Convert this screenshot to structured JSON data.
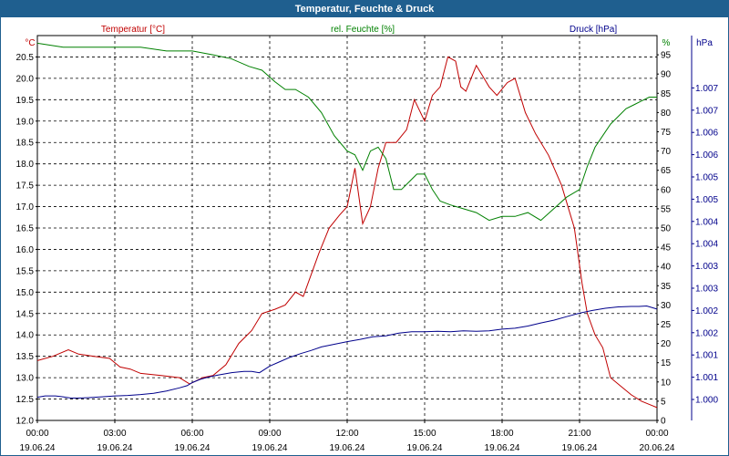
{
  "window": {
    "title": "Temperatur, Feuchte & Druck"
  },
  "colors": {
    "titlebar": "#1f5f8f",
    "temperature": "#c00000",
    "humidity": "#008000",
    "pressure": "#00008b"
  },
  "chart_data": {
    "type": "line",
    "title": "Temperatur, Feuchte & Druck",
    "grid": true,
    "x_ticks": [
      {
        "time": "00:00",
        "date": "19.06.24"
      },
      {
        "time": "03:00",
        "date": "19.06.24"
      },
      {
        "time": "06:00",
        "date": "19.06.24"
      },
      {
        "time": "09:00",
        "date": "19.06.24"
      },
      {
        "time": "12:00",
        "date": "19.06.24"
      },
      {
        "time": "15:00",
        "date": "19.06.24"
      },
      {
        "time": "18:00",
        "date": "19.06.24"
      },
      {
        "time": "21:00",
        "date": "19.06.24"
      },
      {
        "time": "00:00",
        "date": "20.06.24"
      }
    ],
    "x_hours_range": [
      0,
      24
    ],
    "axes": {
      "temperature": {
        "label": "Temperatur [°C]",
        "unit": "°C",
        "range": [
          12.0,
          21.0
        ],
        "ticks": [
          "12.0",
          "12.5",
          "13.0",
          "13.5",
          "14.0",
          "14.5",
          "15.0",
          "15.5",
          "16.0",
          "16.5",
          "17.0",
          "17.5",
          "18.0",
          "18.5",
          "19.0",
          "19.5",
          "20.0",
          "20.5"
        ]
      },
      "humidity": {
        "label": "rel. Feuchte [%]",
        "unit": "%",
        "range": [
          0,
          100
        ],
        "ticks": [
          "0",
          "5",
          "10",
          "15",
          "20",
          "25",
          "30",
          "35",
          "40",
          "45",
          "50",
          "55",
          "60",
          "65",
          "70",
          "75",
          "80",
          "85",
          "90",
          "95"
        ]
      },
      "pressure": {
        "label": "Druck [hPa]",
        "unit": "hPa",
        "ticks": [
          "1.000",
          "1.001",
          "1.001",
          "1.002",
          "1.002",
          "1.003",
          "1.003",
          "1.004",
          "1.004",
          "1.005",
          "1.005",
          "1.006",
          "1.006",
          "1.007",
          "1.007"
        ]
      }
    },
    "series": [
      {
        "name": "Temperatur [°C]",
        "axis": "temperature",
        "color": "#c00000",
        "x": [
          0,
          0.6,
          1.2,
          1.6,
          2.2,
          2.8,
          3.2,
          3.6,
          4.0,
          4.8,
          5.5,
          5.9,
          6.4,
          6.8,
          7.3,
          7.8,
          8.3,
          8.7,
          9.2,
          9.6,
          10.0,
          10.3,
          10.6,
          10.9,
          11.3,
          11.7,
          12.0,
          12.3,
          12.6,
          12.9,
          13.2,
          13.5,
          13.9,
          14.3,
          14.6,
          15.0,
          15.3,
          15.6,
          15.9,
          16.2,
          16.4,
          16.6,
          17.0,
          17.3,
          17.5,
          17.8,
          18.2,
          18.5,
          18.9,
          19.3,
          19.8,
          20.3,
          20.8,
          21.1,
          21.3,
          21.6,
          21.9,
          22.2,
          22.6,
          23.0,
          23.4,
          23.8,
          24.0
        ],
        "values": [
          13.4,
          13.5,
          13.65,
          13.55,
          13.5,
          13.45,
          13.25,
          13.2,
          13.1,
          13.05,
          13.0,
          12.85,
          13.0,
          13.05,
          13.3,
          13.8,
          14.1,
          14.5,
          14.6,
          14.7,
          15.0,
          14.9,
          15.4,
          15.9,
          16.5,
          16.8,
          17.0,
          17.9,
          16.6,
          17.0,
          17.9,
          18.5,
          18.5,
          18.8,
          19.5,
          19.0,
          19.6,
          19.8,
          20.5,
          20.4,
          19.8,
          19.7,
          20.3,
          20.0,
          19.8,
          19.6,
          19.9,
          20.0,
          19.2,
          18.7,
          18.2,
          17.5,
          16.5,
          15.2,
          14.5,
          14.0,
          13.7,
          13.0,
          12.8,
          12.6,
          12.45,
          12.35,
          12.3
        ]
      },
      {
        "name": "rel. Feuchte [%]",
        "axis": "humidity",
        "color": "#008000",
        "x": [
          0,
          1,
          2,
          3,
          4,
          5,
          6,
          6.8,
          7.5,
          8.2,
          8.7,
          9.2,
          9.6,
          10.0,
          10.5,
          11.0,
          11.5,
          12.0,
          12.3,
          12.6,
          12.9,
          13.2,
          13.5,
          13.8,
          14.1,
          14.4,
          14.7,
          15.0,
          15.3,
          15.6,
          16.0,
          16.5,
          17.0,
          17.5,
          18.0,
          18.5,
          19.0,
          19.5,
          20.0,
          20.5,
          21.0,
          21.3,
          21.6,
          21.9,
          22.2,
          22.5,
          22.8,
          23.1,
          23.4,
          23.7,
          24.0
        ],
        "values": [
          98,
          97,
          97,
          97,
          97,
          96,
          96,
          95,
          94,
          92,
          91,
          88,
          86,
          86,
          84,
          80,
          74,
          70,
          69,
          65,
          70,
          71,
          68,
          60,
          60,
          62,
          64,
          64,
          60,
          57,
          56,
          55,
          54,
          52,
          53,
          53,
          54,
          52,
          55,
          58,
          60,
          66,
          71,
          74,
          77,
          79,
          81,
          82,
          83,
          84,
          84
        ]
      },
      {
        "name": "Druck [hPa]",
        "axis": "pressure",
        "color": "#00008b",
        "x": [
          0,
          0.3,
          0.7,
          1.0,
          1.3,
          1.6,
          2.0,
          2.5,
          3.0,
          3.5,
          4.0,
          4.5,
          5.0,
          5.5,
          5.8,
          6.0,
          6.3,
          6.6,
          7.0,
          7.5,
          8.0,
          8.3,
          8.6,
          9.0,
          9.4,
          9.8,
          10.2,
          10.6,
          11.0,
          11.5,
          12.0,
          12.5,
          13.0,
          13.5,
          14.0,
          14.5,
          15.0,
          15.5,
          16.0,
          16.5,
          17.0,
          17.5,
          18.0,
          18.5,
          19.0,
          19.5,
          20.0,
          20.5,
          21.0,
          21.5,
          22.0,
          22.5,
          23.0,
          23.3,
          23.6,
          24.0
        ],
        "values": [
          1.0,
          1.6,
          1.6,
          1.2,
          0.6,
          0.6,
          0.8,
          1.2,
          1.6,
          1.8,
          2.2,
          2.8,
          3.8,
          5.2,
          6.2,
          7.6,
          9.0,
          10.0,
          11.0,
          12.0,
          12.6,
          12.6,
          12.0,
          15.0,
          17.0,
          19.0,
          20.6,
          22.0,
          23.6,
          24.8,
          26.0,
          27.0,
          28.2,
          28.6,
          29.8,
          30.4,
          30.4,
          30.6,
          30.4,
          30.8,
          30.6,
          30.8,
          31.6,
          32.0,
          33.0,
          34.4,
          35.6,
          37.2,
          38.8,
          40.0,
          41.0,
          41.6,
          41.8,
          41.8,
          42.0,
          40.6
        ]
      }
    ]
  }
}
